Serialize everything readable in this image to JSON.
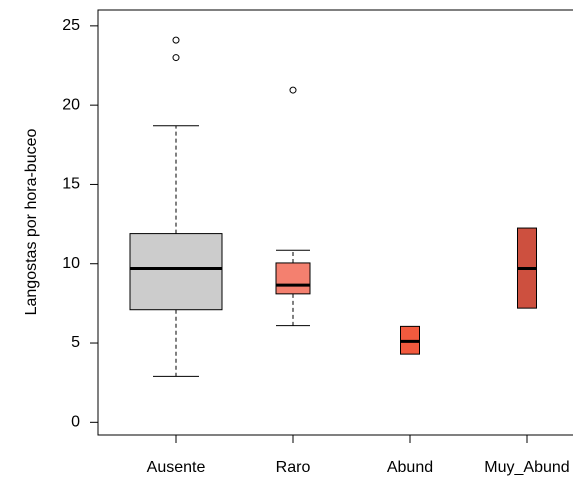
{
  "chart_data": {
    "type": "box",
    "y_label": "Langostas por hora-buceo",
    "categories": [
      "Ausente",
      "Raro",
      "Abund",
      "Muy_Abund"
    ],
    "boxes": [
      {
        "whisker_low": 2.9,
        "q1": 7.1,
        "median": 9.7,
        "q3": 11.9,
        "whisker_high": 18.7,
        "outliers": [
          24.1,
          23.0
        ],
        "color": "#cccccc"
      },
      {
        "whisker_low": 6.1,
        "q1": 8.1,
        "median": 8.65,
        "q3": 10.05,
        "whisker_high": 10.85,
        "outliers": [
          20.95
        ],
        "color": "#f4806f"
      },
      {
        "whisker_low": null,
        "q1": 4.3,
        "median": 5.1,
        "q3": 6.05,
        "whisker_high": null,
        "outliers": [],
        "color": "#f25a3e"
      },
      {
        "whisker_low": null,
        "q1": 7.2,
        "median": 9.7,
        "q3": 12.25,
        "whisker_high": null,
        "outliers": [],
        "color": "#cd503f"
      }
    ],
    "ylim": [
      -0.8,
      26
    ],
    "yticks": [
      0,
      5,
      10,
      15,
      20,
      25
    ]
  }
}
